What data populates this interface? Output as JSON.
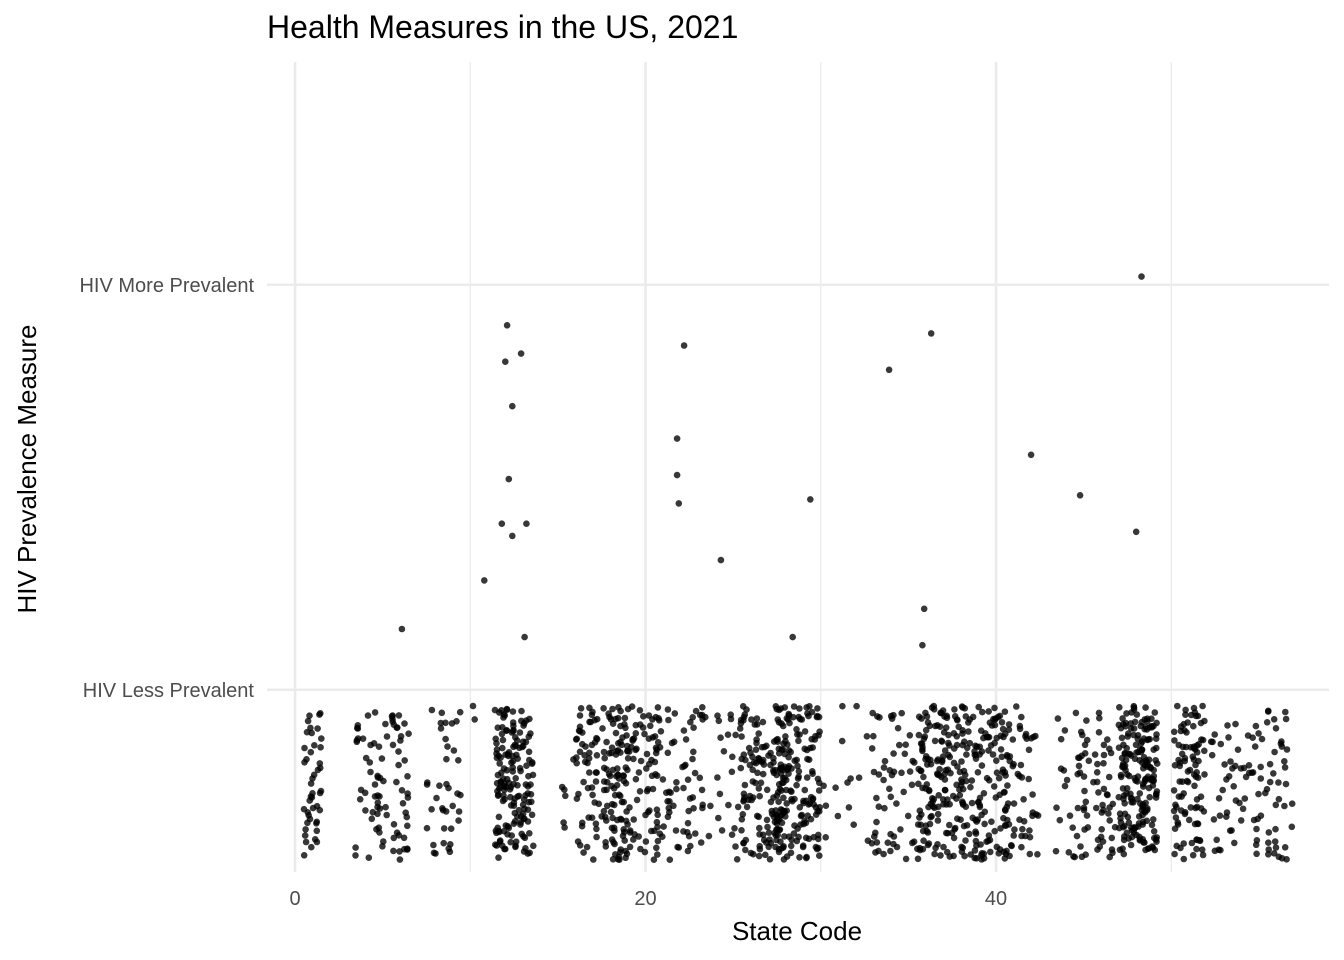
{
  "chart_data": {
    "type": "scatter",
    "title": "Health Measures in the US, 2021",
    "xlabel": "State Code",
    "ylabel": "HIV Prevalence Measure",
    "xlim": [
      -1.6,
      59
    ],
    "ylim": [
      0.55,
      2.55
    ],
    "x_ticks": [
      0,
      20,
      40
    ],
    "x_tick_labels": [
      "0",
      "20",
      "40"
    ],
    "y_ticks": [
      1,
      2
    ],
    "y_tick_labels": [
      "HIV Less Prevalent",
      "HIV More Prevalent"
    ],
    "grid": true,
    "point_color": "#000000",
    "series": [
      {
        "values": [
          {
            "x": 48.3,
            "y": 2.02
          },
          {
            "x": 12.1,
            "y": 1.9
          },
          {
            "x": 12.9,
            "y": 1.83
          },
          {
            "x": 12.0,
            "y": 1.81
          },
          {
            "x": 12.4,
            "y": 1.7
          },
          {
            "x": 22.2,
            "y": 1.85
          },
          {
            "x": 36.3,
            "y": 1.88
          },
          {
            "x": 33.9,
            "y": 1.79
          },
          {
            "x": 21.8,
            "y": 1.62
          },
          {
            "x": 21.8,
            "y": 1.53
          },
          {
            "x": 21.9,
            "y": 1.46
          },
          {
            "x": 12.2,
            "y": 1.52
          },
          {
            "x": 11.8,
            "y": 1.41
          },
          {
            "x": 13.2,
            "y": 1.41
          },
          {
            "x": 12.4,
            "y": 1.38
          },
          {
            "x": 10.8,
            "y": 1.27
          },
          {
            "x": 24.3,
            "y": 1.32
          },
          {
            "x": 29.4,
            "y": 1.47
          },
          {
            "x": 42.0,
            "y": 1.58
          },
          {
            "x": 44.8,
            "y": 1.48
          },
          {
            "x": 48.0,
            "y": 1.39
          },
          {
            "x": 6.1,
            "y": 1.15
          },
          {
            "x": 13.1,
            "y": 1.13
          },
          {
            "x": 28.4,
            "y": 1.13
          },
          {
            "x": 35.9,
            "y": 1.2
          },
          {
            "x": 35.8,
            "y": 1.11
          }
        ]
      }
    ],
    "jitter_clusters": [
      {
        "x": 1,
        "n": 45,
        "w": 0.5,
        "ylo": 0.58,
        "yhi": 0.95
      },
      {
        "x": 4,
        "n": 22,
        "w": 0.55,
        "ylo": 0.58,
        "yhi": 0.96
      },
      {
        "x": 5.5,
        "n": 60,
        "w": 1.0,
        "ylo": 0.58,
        "yhi": 0.96
      },
      {
        "x": 8.5,
        "n": 38,
        "w": 1.0,
        "ylo": 0.58,
        "yhi": 0.95
      },
      {
        "x": 10.3,
        "n": 2,
        "w": 0.35,
        "ylo": 0.85,
        "yhi": 0.96
      },
      {
        "x": 12.5,
        "n": 160,
        "w": 1.1,
        "ylo": 0.58,
        "yhi": 0.96
      },
      {
        "x": 15.6,
        "n": 6,
        "w": 0.5,
        "ylo": 0.6,
        "yhi": 0.85
      },
      {
        "x": 17.5,
        "n": 120,
        "w": 1.5,
        "ylo": 0.58,
        "yhi": 0.96
      },
      {
        "x": 19.3,
        "n": 100,
        "w": 1.4,
        "ylo": 0.58,
        "yhi": 0.96
      },
      {
        "x": 22.0,
        "n": 60,
        "w": 1.3,
        "ylo": 0.58,
        "yhi": 0.96
      },
      {
        "x": 24.5,
        "n": 35,
        "w": 1.4,
        "ylo": 0.58,
        "yhi": 0.96
      },
      {
        "x": 26.8,
        "n": 130,
        "w": 1.4,
        "ylo": 0.58,
        "yhi": 0.96
      },
      {
        "x": 28.7,
        "n": 150,
        "w": 1.3,
        "ylo": 0.58,
        "yhi": 0.96
      },
      {
        "x": 31.5,
        "n": 20,
        "w": 1.8,
        "ylo": 0.58,
        "yhi": 0.96
      },
      {
        "x": 34.5,
        "n": 60,
        "w": 1.6,
        "ylo": 0.58,
        "yhi": 0.96
      },
      {
        "x": 36.8,
        "n": 140,
        "w": 1.3,
        "ylo": 0.58,
        "yhi": 0.96
      },
      {
        "x": 39.4,
        "n": 130,
        "w": 1.4,
        "ylo": 0.58,
        "yhi": 0.96
      },
      {
        "x": 41.4,
        "n": 55,
        "w": 1.0,
        "ylo": 0.58,
        "yhi": 0.96
      },
      {
        "x": 44.2,
        "n": 25,
        "w": 0.8,
        "ylo": 0.58,
        "yhi": 0.96
      },
      {
        "x": 45.8,
        "n": 55,
        "w": 1.0,
        "ylo": 0.58,
        "yhi": 0.96
      },
      {
        "x": 48.1,
        "n": 190,
        "w": 1.1,
        "ylo": 0.58,
        "yhi": 0.96
      },
      {
        "x": 51.0,
        "n": 95,
        "w": 0.9,
        "ylo": 0.58,
        "yhi": 0.96
      },
      {
        "x": 53.5,
        "n": 45,
        "w": 1.3,
        "ylo": 0.58,
        "yhi": 0.95
      },
      {
        "x": 55.8,
        "n": 50,
        "w": 1.1,
        "ylo": 0.58,
        "yhi": 0.95
      }
    ]
  }
}
